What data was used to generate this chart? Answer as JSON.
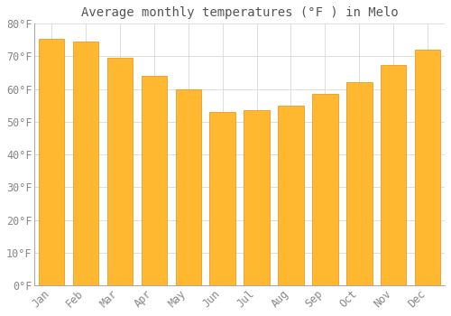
{
  "title": "Average monthly temperatures (°F ) in Melo",
  "months": [
    "Jan",
    "Feb",
    "Mar",
    "Apr",
    "May",
    "Jun",
    "Jul",
    "Aug",
    "Sep",
    "Oct",
    "Nov",
    "Dec"
  ],
  "values": [
    75.5,
    74.5,
    69.5,
    64,
    60,
    53,
    53.5,
    55,
    58.5,
    62,
    67.5,
    72
  ],
  "bar_color": "#FFA500",
  "bar_edge_color": "#CC8800",
  "background_color": "#FFFFFF",
  "plot_bg_color": "#FFFFFF",
  "grid_color": "#DDDDDD",
  "ylim": [
    0,
    80
  ],
  "yticks": [
    0,
    10,
    20,
    30,
    40,
    50,
    60,
    70,
    80
  ],
  "title_fontsize": 10,
  "tick_fontsize": 8.5,
  "tick_color": "#888888",
  "title_color": "#555555",
  "font_family": "monospace",
  "bar_width": 0.75
}
